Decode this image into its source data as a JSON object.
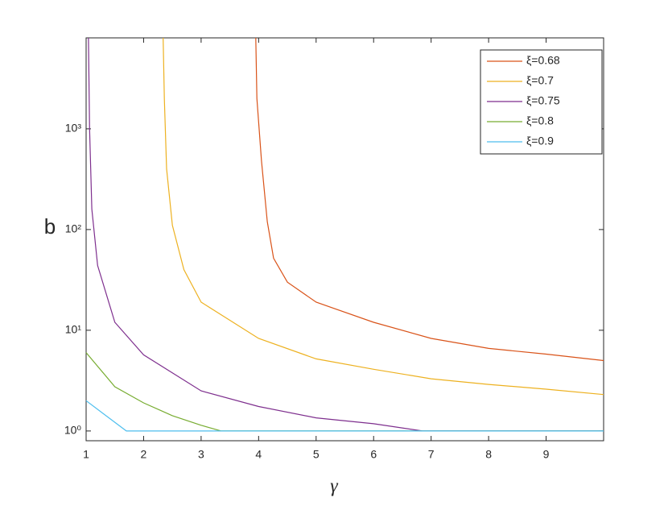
{
  "chart_data": {
    "type": "line",
    "xlabel": "γ",
    "ylabel": "b",
    "xlim": [
      1,
      10
    ],
    "ylim": [
      0.8,
      8000
    ],
    "log_y": true,
    "xticks": [
      1,
      2,
      3,
      4,
      5,
      6,
      7,
      8,
      9
    ],
    "yticks": [
      {
        "value": 1,
        "label": "10⁰"
      },
      {
        "value": 10,
        "label": "10¹"
      },
      {
        "value": 100,
        "label": "10²"
      },
      {
        "value": 1000,
        "label": "10³"
      }
    ],
    "legend": "upper right",
    "series": [
      {
        "name": "ξ=0.68",
        "color": "#d95319",
        "x": [
          3.95,
          3.97,
          4.05,
          4.15,
          4.26,
          4.5,
          5,
          6,
          7,
          8,
          9,
          10
        ],
        "values": [
          8000,
          2000,
          480,
          120,
          52,
          30,
          19,
          12,
          8.3,
          6.6,
          5.8,
          5.0
        ]
      },
      {
        "name": "ξ=0.7",
        "color": "#edb120",
        "x": [
          2.34,
          2.36,
          2.4,
          2.5,
          2.7,
          3,
          4,
          5,
          6,
          7,
          8,
          9,
          10
        ],
        "values": [
          8000,
          2000,
          400,
          110,
          40,
          19,
          8.3,
          5.2,
          4.1,
          3.3,
          2.9,
          2.6,
          2.3
        ]
      },
      {
        "name": "ξ=0.75",
        "color": "#7e2f8e",
        "x": [
          1.04,
          1.06,
          1.1,
          1.2,
          1.5,
          2,
          3,
          4,
          5,
          6,
          6.85,
          10
        ],
        "values": [
          8000,
          1000,
          160,
          44,
          12,
          5.7,
          2.5,
          1.75,
          1.35,
          1.18,
          1,
          1
        ]
      },
      {
        "name": "ξ=0.8",
        "color": "#77ac30",
        "x": [
          1,
          1.5,
          2,
          2.5,
          3,
          3.35,
          10
        ],
        "values": [
          6.0,
          2.75,
          1.9,
          1.42,
          1.14,
          1,
          1
        ]
      },
      {
        "name": "ξ=0.9",
        "color": "#4dbeee",
        "x": [
          1,
          1.7,
          10
        ],
        "values": [
          2.0,
          1,
          1
        ]
      }
    ]
  }
}
